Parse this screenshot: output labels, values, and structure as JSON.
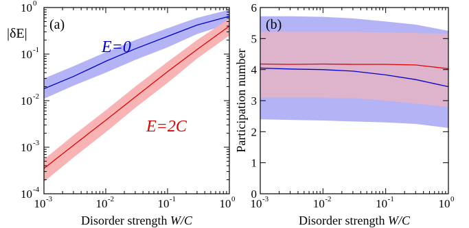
{
  "colors": {
    "blue": "#0000cc",
    "blue_band": "#b3b3f5",
    "red": "#e00000",
    "red_band": "#f8b4b4",
    "purple_overlap": "#c480b8"
  },
  "chart_data": [
    {
      "id": "a",
      "type": "line",
      "panel_label": "(a)",
      "x_scale": "log",
      "y_scale": "log",
      "xlim": [
        0.001,
        1
      ],
      "ylim": [
        0.0001,
        1
      ],
      "xlabel_parts": [
        "Disorder strength ",
        "W/C"
      ],
      "ylabel": "|δE|",
      "x_ticks": [
        {
          "base": "10",
          "exp": "-3",
          "value": 0.001
        },
        {
          "base": "10",
          "exp": "-2",
          "value": 0.01
        },
        {
          "base": "10",
          "exp": "-1",
          "value": 0.1
        },
        {
          "base": "10",
          "exp": "0",
          "value": 1
        }
      ],
      "y_ticks": [
        {
          "base": "10",
          "exp": "-4",
          "value": 0.0001
        },
        {
          "base": "10",
          "exp": "-3",
          "value": 0.001
        },
        {
          "base": "10",
          "exp": "-2",
          "value": 0.01
        },
        {
          "base": "10",
          "exp": "-1",
          "value": 0.1
        },
        {
          "base": "10",
          "exp": "0",
          "value": 1
        }
      ],
      "annotations": [
        {
          "text": "E=0",
          "color_key": "blue"
        },
        {
          "text": "E=2C",
          "color_key": "red"
        }
      ],
      "series": [
        {
          "color_key": "blue",
          "x": [
            0.001,
            0.003,
            0.01,
            0.03,
            0.1,
            0.3,
            1
          ],
          "y": [
            0.018,
            0.033,
            0.07,
            0.13,
            0.24,
            0.42,
            0.65
          ],
          "lower": [
            0.011,
            0.021,
            0.04,
            0.075,
            0.14,
            0.27,
            0.45
          ],
          "upper": [
            0.03,
            0.055,
            0.11,
            0.2,
            0.36,
            0.6,
            0.9
          ]
        },
        {
          "color_key": "red",
          "x": [
            0.001,
            0.003,
            0.01,
            0.03,
            0.1,
            0.3,
            1
          ],
          "y": [
            0.00035,
            0.0011,
            0.0038,
            0.012,
            0.042,
            0.125,
            0.4
          ],
          "lower": [
            0.00018,
            0.0006,
            0.0021,
            0.007,
            0.024,
            0.08,
            0.25
          ],
          "upper": [
            0.00055,
            0.0018,
            0.0062,
            0.02,
            0.068,
            0.2,
            0.58
          ]
        }
      ]
    },
    {
      "id": "b",
      "type": "line",
      "panel_label": "(b)",
      "x_scale": "log",
      "y_scale": "linear",
      "xlim": [
        0.001,
        1
      ],
      "ylim": [
        0,
        6
      ],
      "xlabel_parts": [
        "Disorder strength ",
        "W/C"
      ],
      "ylabel": "Participation number",
      "x_ticks": [
        {
          "base": "10",
          "exp": "-3",
          "value": 0.001
        },
        {
          "base": "10",
          "exp": "-2",
          "value": 0.01
        },
        {
          "base": "10",
          "exp": "-1",
          "value": 0.1
        },
        {
          "base": "10",
          "exp": "0",
          "value": 1
        }
      ],
      "y_ticks": [
        {
          "label": "0",
          "value": 0
        },
        {
          "label": "1",
          "value": 1
        },
        {
          "label": "2",
          "value": 2
        },
        {
          "label": "3",
          "value": 3
        },
        {
          "label": "4",
          "value": 4
        },
        {
          "label": "5",
          "value": 5
        },
        {
          "label": "6",
          "value": 6
        }
      ],
      "series": [
        {
          "color_key": "blue",
          "x": [
            0.001,
            0.003,
            0.01,
            0.03,
            0.1,
            0.3,
            1
          ],
          "y": [
            4.05,
            4.02,
            4.0,
            3.95,
            3.83,
            3.68,
            3.45
          ],
          "lower": [
            2.4,
            2.38,
            2.36,
            2.33,
            2.3,
            2.25,
            2.12
          ],
          "upper": [
            5.72,
            5.72,
            5.7,
            5.65,
            5.55,
            5.45,
            5.25
          ]
        },
        {
          "color_key": "red",
          "x": [
            0.001,
            0.003,
            0.01,
            0.03,
            0.1,
            0.3,
            1
          ],
          "y": [
            4.18,
            4.17,
            4.18,
            4.17,
            4.17,
            4.15,
            4.03
          ],
          "lower": [
            3.1,
            3.1,
            3.1,
            3.08,
            3.0,
            2.9,
            2.8
          ],
          "upper": [
            5.22,
            5.22,
            5.22,
            5.22,
            5.2,
            5.18,
            5.15
          ]
        }
      ]
    }
  ]
}
